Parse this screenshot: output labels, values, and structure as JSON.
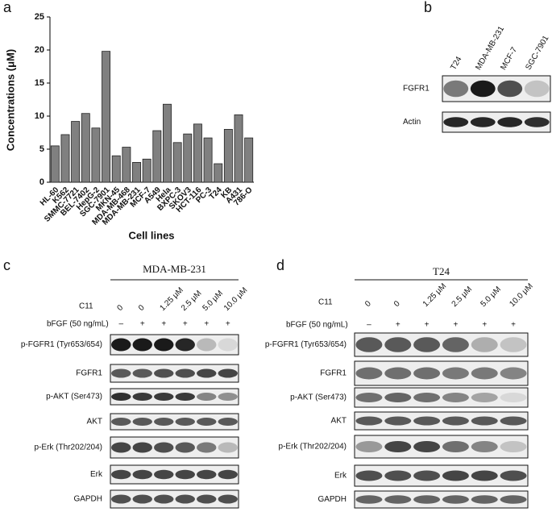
{
  "panel_labels": [
    "a",
    "b",
    "c",
    "d"
  ],
  "chart_data": {
    "type": "bar",
    "x_label": "Cell lines",
    "y_label": "Concentrations (μM)",
    "categories": [
      "HL-60",
      "K562",
      "SMMC-7721",
      "BEL-7402",
      "HepG-2",
      "SGC-7901",
      "MKN-45",
      "MDA-MB-468",
      "MDA-MB-231",
      "MCF-7",
      "A549",
      "Hela",
      "BXPC-3",
      "SKOV3",
      "HCT-116",
      "PC-3",
      "T24",
      "KB",
      "A431",
      "786-O"
    ],
    "values": [
      5.5,
      7.2,
      9.2,
      10.4,
      8.2,
      19.8,
      4.0,
      5.3,
      3.0,
      3.5,
      7.8,
      11.8,
      6.0,
      7.3,
      8.8,
      6.7,
      2.8,
      8.0,
      10.2,
      6.7
    ],
    "color": "#808080",
    "ylim": [
      0,
      25
    ],
    "yticks": [
      0,
      5,
      10,
      15,
      20,
      25
    ]
  },
  "blot_b": {
    "lanes": [
      "T24",
      "MDA-MB-231",
      "MCF-7",
      "SGC-7901"
    ],
    "rows": [
      "FGFR1",
      "Actin"
    ]
  },
  "blot_c": {
    "cell_line": "MDA-MB-231",
    "c11_label": "C11",
    "bfgf_label": "bFGF (50 ng/mL)",
    "c11": [
      "0",
      "0",
      "1.25 μM",
      "2.5 μM",
      "5.0 μM",
      "10.0 μM"
    ],
    "bfgf": [
      "–",
      "+",
      "+",
      "+",
      "+",
      "+"
    ],
    "rows": [
      "p-FGFR1 (Tyr653/654)",
      "FGFR1",
      "p-AKT (Ser473)",
      "AKT",
      "p-Erk (Thr202/204)",
      "Erk",
      "GAPDH"
    ]
  },
  "blot_d": {
    "cell_line": "T24",
    "c11_label": "C11",
    "bfgf_label": "bFGF (50 ng/mL)",
    "c11": [
      "0",
      "0",
      "1.25 μM",
      "2.5 μM",
      "5.0 μM",
      "10.0 μM"
    ],
    "bfgf": [
      "–",
      "+",
      "+",
      "+",
      "+",
      "+"
    ],
    "rows": [
      "p-FGFR1 (Tyr653/654)",
      "FGFR1",
      "p-AKT (Ser473)",
      "AKT",
      "p-Erk (Thr202/204)",
      "Erk",
      "GAPDH"
    ]
  }
}
